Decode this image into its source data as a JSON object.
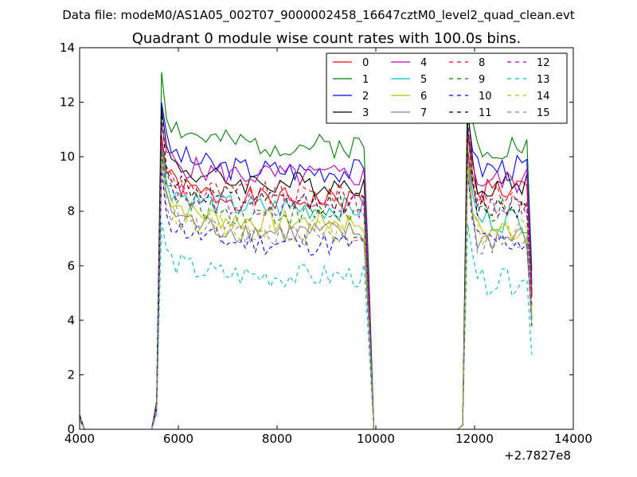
{
  "figure": {
    "suptitle": "Data file: modeM0/AS1A05_002T07_9000002458_16647cztM0_level2_quad_clean.evt"
  },
  "chart_data": {
    "type": "line",
    "title": "Quadrant 0 module wise count rates with 100.0s bins.",
    "xlabel": "",
    "ylabel": "",
    "x_offset_label": "+2.7827e8",
    "xlim": [
      4000,
      14000
    ],
    "ylim": [
      0,
      14
    ],
    "xticks": [
      4000,
      6000,
      8000,
      10000,
      12000,
      14000
    ],
    "xtick_labels": [
      "4000",
      "6000",
      "8000",
      "10000",
      "12000",
      "14000"
    ],
    "yticks": [
      0,
      2,
      4,
      6,
      8,
      10,
      12,
      14
    ],
    "ytick_labels": [
      "0",
      "2",
      "4",
      "6",
      "8",
      "10",
      "12",
      "14"
    ],
    "grid": false,
    "legend_placement": "top-right",
    "legend_columns": 4,
    "segments": [
      {
        "x_start": 4000,
        "x_end": 4100,
        "zero_end": 5460,
        "rise": 5560
      },
      {
        "x_start": 5660,
        "x_end": 9760,
        "fall_end": 9860,
        "zero_x": [
          9960,
          10060,
          11660
        ],
        "rise": 11760
      },
      {
        "x_start": 11860,
        "x_end": 13060,
        "end": 13160
      }
    ],
    "series": [
      {
        "name": "0",
        "color": "#ff0000",
        "style": "solid",
        "level": 8.4,
        "peak": 10.8,
        "end2": 8.8
      },
      {
        "name": "1",
        "color": "#008000",
        "style": "solid",
        "level": 10.4,
        "peak": 13.1,
        "end2": 10.4
      },
      {
        "name": "2",
        "color": "#0000ff",
        "style": "solid",
        "level": 9.5,
        "peak": 12.0,
        "end2": 9.6
      },
      {
        "name": "3",
        "color": "#000000",
        "style": "solid",
        "level": 9.0,
        "peak": 11.8,
        "end2": 9.0
      },
      {
        "name": "4",
        "color": "#bf00bf",
        "style": "solid",
        "level": 9.3,
        "peak": 11.2,
        "end2": 9.1
      },
      {
        "name": "5",
        "color": "#00bfbf",
        "style": "solid",
        "level": 8.1,
        "peak": 10.5,
        "end2": 7.7
      },
      {
        "name": "6",
        "color": "#bfbf00",
        "style": "solid",
        "level": 7.6,
        "peak": 10.3,
        "end2": 7.3
      },
      {
        "name": "7",
        "color": "#808080",
        "style": "solid",
        "level": 7.2,
        "peak": 10.0,
        "end2": 7.0
      },
      {
        "name": "8",
        "color": "#ff0000",
        "style": "dashed",
        "level": 8.6,
        "peak": 10.6,
        "end2": 8.5
      },
      {
        "name": "9",
        "color": "#008000",
        "style": "dashed",
        "level": 7.9,
        "peak": 10.2,
        "end2": 8.0
      },
      {
        "name": "10",
        "color": "#0000ff",
        "style": "dashed",
        "level": 6.8,
        "peak": 9.5,
        "end2": 6.9
      },
      {
        "name": "11",
        "color": "#000000",
        "style": "dashed",
        "level": 8.3,
        "peak": 11.6,
        "end2": 8.2
      },
      {
        "name": "12",
        "color": "#bf00bf",
        "style": "dashed",
        "level": 8.2,
        "peak": 10.5,
        "end2": 8.3
      },
      {
        "name": "13",
        "color": "#00bfbf",
        "style": "dashed",
        "level": 5.6,
        "peak": 7.6,
        "end2": 5.4
      },
      {
        "name": "14",
        "color": "#bfbf00",
        "style": "dashed",
        "level": 7.3,
        "peak": 10.0,
        "end2": 7.2
      },
      {
        "name": "15",
        "color": "#808080",
        "style": "dashed",
        "level": 7.1,
        "peak": 9.8,
        "end2": 6.8
      }
    ]
  }
}
